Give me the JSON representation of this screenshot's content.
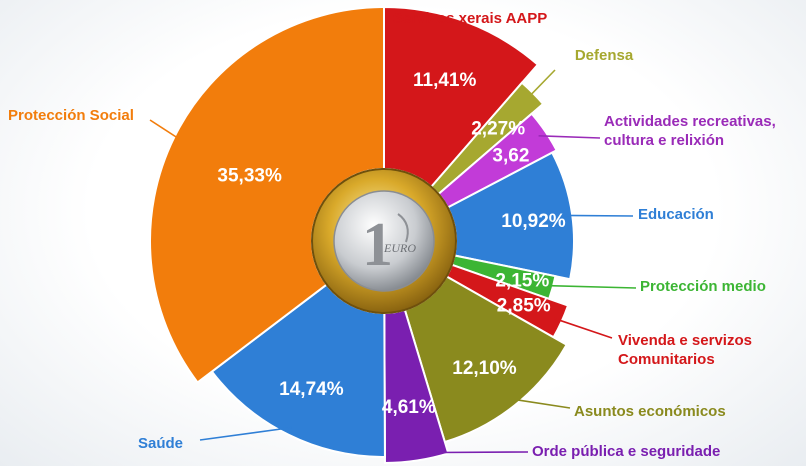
{
  "chart_data": {
    "type": "pie",
    "categories": [
      "Servizos xerais AAPP",
      "Defensa",
      "Actividades recreativas, cultura e relixión",
      "Educación",
      "Protección medio",
      "Vivenda e servizos Comunitarios",
      "Asuntos económicos",
      "Orde pública e seguridade",
      "Saúde",
      "Protección Social"
    ],
    "values": [
      11.41,
      2.27,
      3.62,
      10.92,
      2.15,
      2.85,
      12.1,
      4.61,
      14.74,
      35.33
    ],
    "value_labels": [
      "11,41%",
      "2,27%",
      "3,62",
      "10,92%",
      "2,15%",
      "2,85%",
      "12,10%",
      "4,61%",
      "14,74%",
      "35,33%"
    ],
    "colors": [
      "#d4171a",
      "#a6a830",
      "#c23bd8",
      "#2f7fd6",
      "#3cb534",
      "#d4171a",
      "#8a8a1e",
      "#7a1fb0",
      "#2f7fd6",
      "#f27d0c"
    ],
    "label_colors": [
      "#d4171a",
      "#a6a830",
      "#9a2bb8",
      "#2f7fd6",
      "#3cb534",
      "#d4171a",
      "#8a8a1e",
      "#7a1fb0",
      "#2f7fd6",
      "#f27d0c"
    ],
    "start_angle_deg": 0,
    "direction": "clockwise",
    "center_image": "one-euro-coin-icon"
  }
}
